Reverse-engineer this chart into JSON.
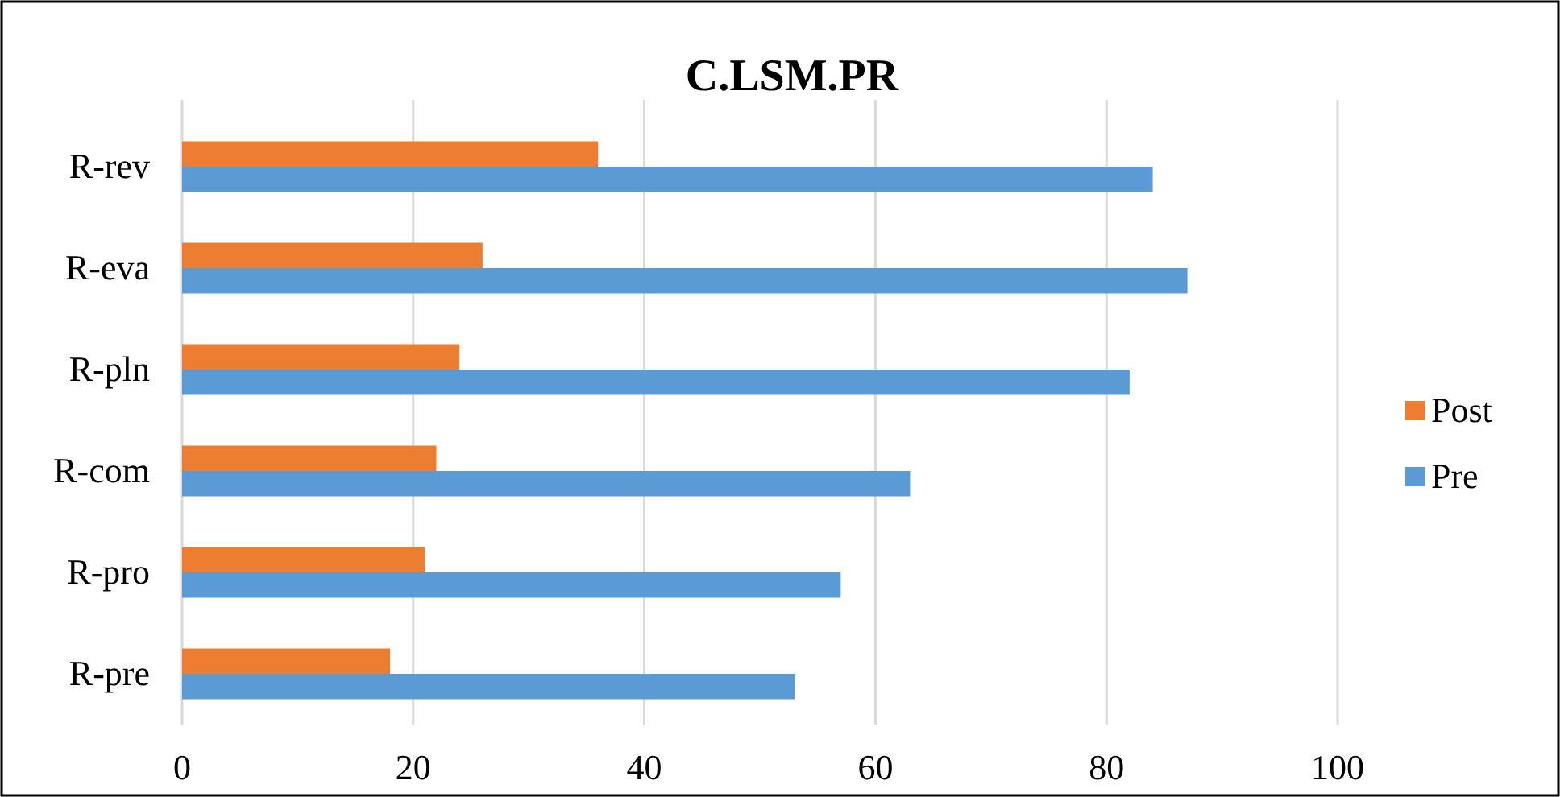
{
  "chart_data": {
    "type": "bar",
    "title": "C.LSM.PR",
    "orientation": "horizontal",
    "categories": [
      "R-rev",
      "R-eva",
      "R-pln",
      "R-com",
      "R-pro",
      "R-pre"
    ],
    "series": [
      {
        "name": "Post",
        "color": "#ed7d31",
        "values": [
          36,
          26,
          24,
          22,
          21,
          18
        ]
      },
      {
        "name": "Pre",
        "color": "#5b9bd5",
        "values": [
          84,
          87,
          82,
          63,
          57,
          53
        ]
      }
    ],
    "xlim": [
      0,
      100
    ],
    "xticks": [
      0,
      20,
      40,
      60,
      80,
      100
    ],
    "grid": "x",
    "legend": "right"
  }
}
